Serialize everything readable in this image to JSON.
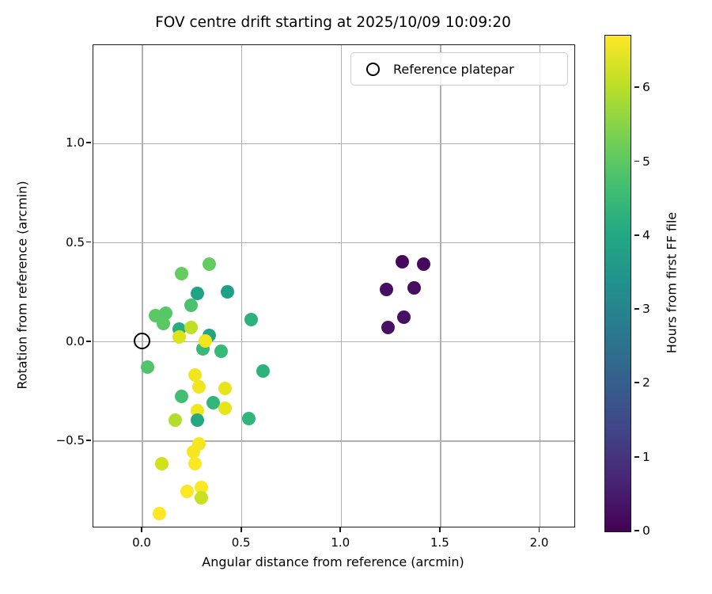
{
  "chart_data": {
    "type": "scatter",
    "title": "FOV centre drift starting at 2025/10/09 10:09:20",
    "xlabel": "Angular distance from reference (arcmin)",
    "ylabel": "Rotation from reference (arcmin)",
    "xlim": [
      -0.247,
      2.173
    ],
    "ylim": [
      -0.932,
      1.497
    ],
    "grid": true,
    "legend_position": "upper right",
    "legend": {
      "label": "Reference platepar",
      "marker": "open-circle"
    },
    "reference_point": {
      "x": 0.0,
      "y": 0.0
    },
    "x_ticks": {
      "values": [
        0.0,
        0.5,
        1.0,
        1.5,
        2.0
      ],
      "labels": [
        "0.0",
        "0.5",
        "1.0",
        "1.5",
        "2.0"
      ]
    },
    "y_ticks": {
      "values": [
        1.0,
        0.5,
        0.0,
        -0.5
      ],
      "labels": [
        "1.0",
        "0.5",
        "0.0",
        "−0.5"
      ]
    },
    "colorbar": {
      "label": "Hours from first FF file",
      "vmin": 0,
      "vmax": 6.71,
      "ticks": {
        "values": [
          0,
          1,
          2,
          3,
          4,
          5,
          6
        ],
        "labels": [
          "0",
          "1",
          "2",
          "3",
          "4",
          "5",
          "6"
        ]
      },
      "colormap": "viridis",
      "gradient": [
        {
          "pos": 0.0,
          "color": "#440154"
        },
        {
          "pos": 0.1,
          "color": "#482475"
        },
        {
          "pos": 0.2,
          "color": "#414487"
        },
        {
          "pos": 0.3,
          "color": "#355f8d"
        },
        {
          "pos": 0.4,
          "color": "#2a788e"
        },
        {
          "pos": 0.5,
          "color": "#21918c"
        },
        {
          "pos": 0.6,
          "color": "#22a884"
        },
        {
          "pos": 0.7,
          "color": "#44bf70"
        },
        {
          "pos": 0.8,
          "color": "#7ad151"
        },
        {
          "pos": 0.9,
          "color": "#bddf26"
        },
        {
          "pos": 1.0,
          "color": "#fde725"
        }
      ]
    },
    "points": [
      {
        "x": 1.31,
        "y": 0.4,
        "hours": 0.1,
        "color": "#46085c"
      },
      {
        "x": 1.42,
        "y": 0.39,
        "hours": 0.1,
        "color": "#46085c"
      },
      {
        "x": 1.23,
        "y": 0.26,
        "hours": 0.15,
        "color": "#470d60"
      },
      {
        "x": 1.37,
        "y": 0.27,
        "hours": 0.15,
        "color": "#470d60"
      },
      {
        "x": 1.32,
        "y": 0.12,
        "hours": 0.2,
        "color": "#471063"
      },
      {
        "x": 1.24,
        "y": 0.07,
        "hours": 0.2,
        "color": "#471063"
      },
      {
        "x": 0.34,
        "y": 0.39,
        "hours": 5.2,
        "color": "#63cb5f"
      },
      {
        "x": 0.2,
        "y": 0.34,
        "hours": 5.2,
        "color": "#63cb5f"
      },
      {
        "x": 0.28,
        "y": 0.24,
        "hours": 4.1,
        "color": "#20a486"
      },
      {
        "x": 0.43,
        "y": 0.25,
        "hours": 4.0,
        "color": "#1fa188"
      },
      {
        "x": 0.25,
        "y": 0.18,
        "hours": 4.8,
        "color": "#4ac16d"
      },
      {
        "x": 0.07,
        "y": 0.13,
        "hours": 5.1,
        "color": "#5cc863"
      },
      {
        "x": 0.12,
        "y": 0.14,
        "hours": 5.0,
        "color": "#56c667"
      },
      {
        "x": 0.11,
        "y": 0.09,
        "hours": 5.1,
        "color": "#5cc863"
      },
      {
        "x": 0.19,
        "y": 0.06,
        "hours": 4.3,
        "color": "#27ad81"
      },
      {
        "x": 0.25,
        "y": 0.07,
        "hours": 6.0,
        "color": "#bddf26"
      },
      {
        "x": 0.34,
        "y": 0.03,
        "hours": 4.15,
        "color": "#21a585"
      },
      {
        "x": 0.19,
        "y": 0.02,
        "hours": 6.3,
        "color": "#dbe319"
      },
      {
        "x": 0.31,
        "y": -0.04,
        "hours": 4.6,
        "color": "#38b977"
      },
      {
        "x": 0.32,
        "y": 0.0,
        "hours": 6.5,
        "color": "#f1e51d"
      },
      {
        "x": 0.4,
        "y": -0.05,
        "hours": 4.6,
        "color": "#38b977"
      },
      {
        "x": 0.55,
        "y": 0.11,
        "hours": 4.4,
        "color": "#2db27d"
      },
      {
        "x": 0.03,
        "y": -0.13,
        "hours": 4.9,
        "color": "#50c46a"
      },
      {
        "x": 0.61,
        "y": -0.15,
        "hours": 4.4,
        "color": "#2db27d"
      },
      {
        "x": 0.27,
        "y": -0.17,
        "hours": 6.5,
        "color": "#f1e51d"
      },
      {
        "x": 0.29,
        "y": -0.23,
        "hours": 6.5,
        "color": "#f1e51d"
      },
      {
        "x": 0.42,
        "y": -0.24,
        "hours": 6.4,
        "color": "#e7e419"
      },
      {
        "x": 0.2,
        "y": -0.28,
        "hours": 4.7,
        "color": "#40bf71"
      },
      {
        "x": 0.36,
        "y": -0.31,
        "hours": 4.5,
        "color": "#31b57b"
      },
      {
        "x": 0.42,
        "y": -0.34,
        "hours": 6.4,
        "color": "#e7e419"
      },
      {
        "x": 0.28,
        "y": -0.35,
        "hours": 6.5,
        "color": "#f1e51d"
      },
      {
        "x": 0.28,
        "y": -0.4,
        "hours": 4.2,
        "color": "#23a883"
      },
      {
        "x": 0.17,
        "y": -0.4,
        "hours": 5.9,
        "color": "#b2dd2d"
      },
      {
        "x": 0.54,
        "y": -0.39,
        "hours": 4.5,
        "color": "#31b57b"
      },
      {
        "x": 0.29,
        "y": -0.52,
        "hours": 6.55,
        "color": "#f6e620"
      },
      {
        "x": 0.26,
        "y": -0.56,
        "hours": 6.55,
        "color": "#f6e620"
      },
      {
        "x": 0.27,
        "y": -0.62,
        "hours": 6.6,
        "color": "#fbe723"
      },
      {
        "x": 0.1,
        "y": -0.62,
        "hours": 6.2,
        "color": "#d1e21b"
      },
      {
        "x": 0.23,
        "y": -0.76,
        "hours": 6.6,
        "color": "#fbe723"
      },
      {
        "x": 0.3,
        "y": -0.74,
        "hours": 6.6,
        "color": "#fbe723"
      },
      {
        "x": 0.3,
        "y": -0.79,
        "hours": 6.1,
        "color": "#c7e020"
      },
      {
        "x": 0.09,
        "y": -0.87,
        "hours": 6.65,
        "color": "#fde725"
      }
    ]
  }
}
